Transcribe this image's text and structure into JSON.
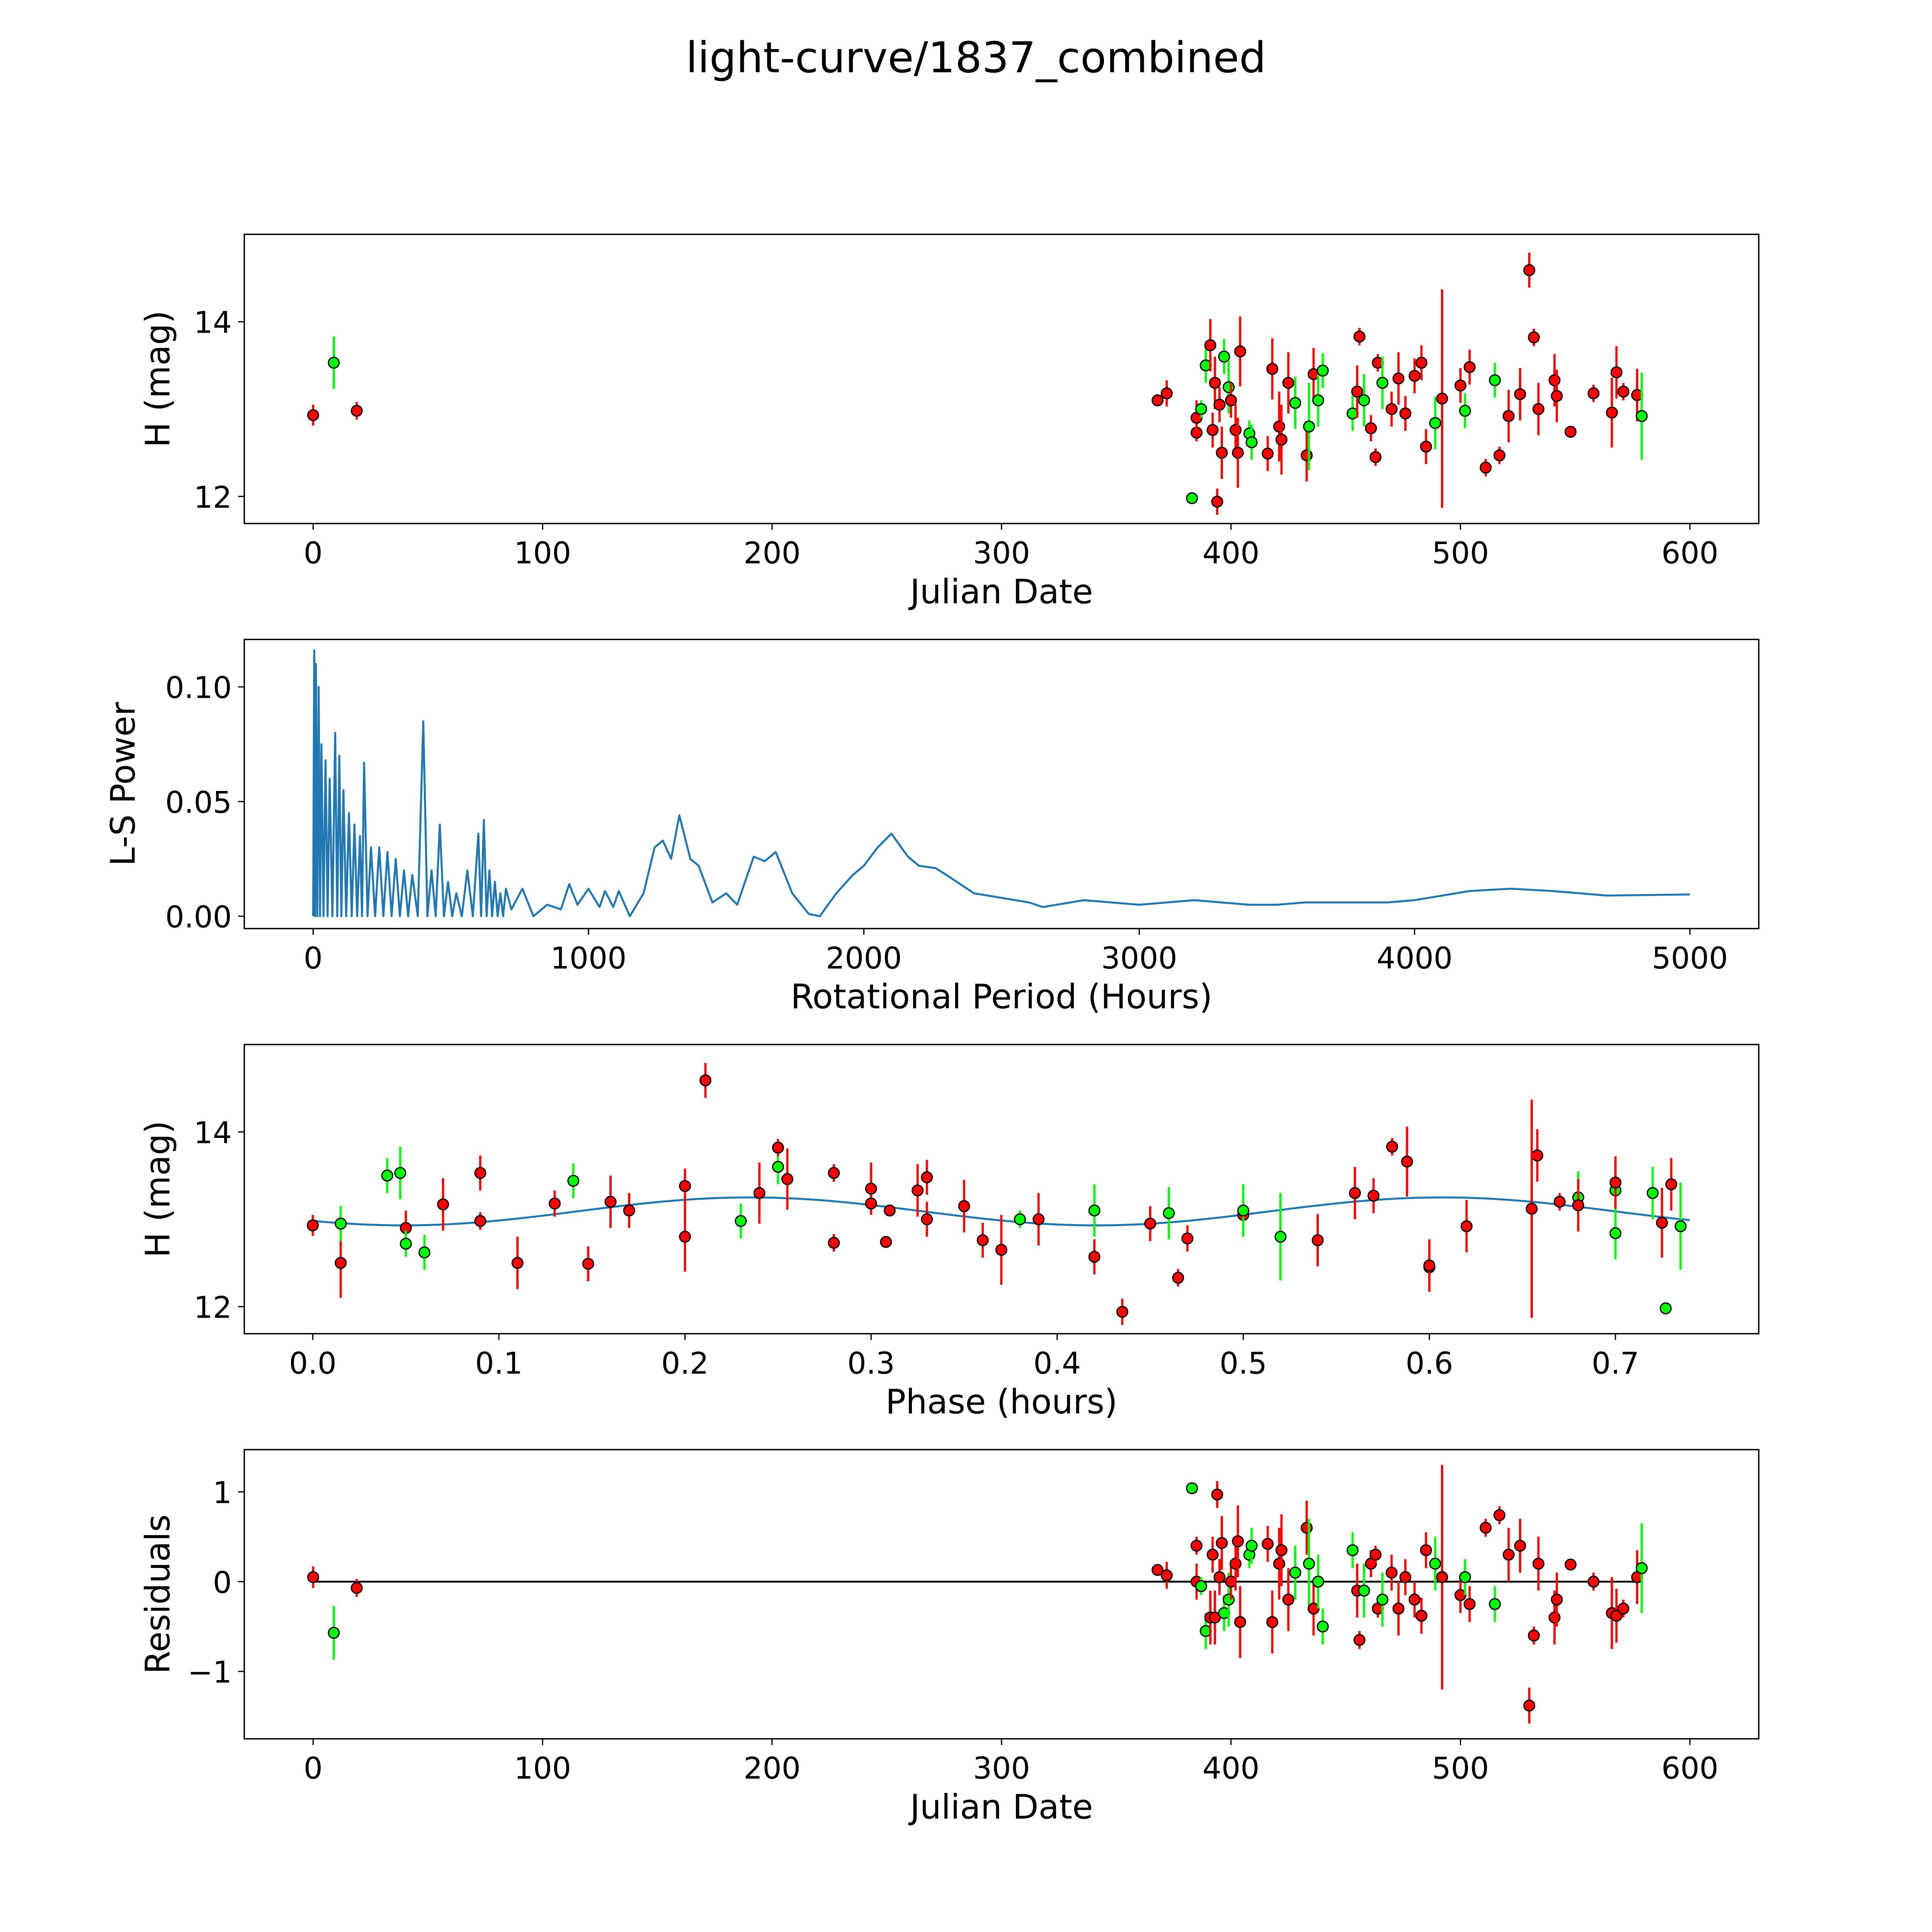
{
  "title": "light-curve/1837_combined",
  "colors": {
    "r": "#ff0000",
    "g": "#00ff00",
    "curve": "#1f77b4",
    "marker_edge": "#000000"
  },
  "chart_data": [
    {
      "type": "scatter",
      "id": "lightcurve",
      "xlabel": "Julian Date",
      "ylabel": "H (mag)",
      "xlim": [
        -30,
        630
      ],
      "ylim": [
        11.69,
        15.0
      ],
      "xticks": [
        "0",
        "100",
        "200",
        "300",
        "400",
        "500",
        "600"
      ],
      "yticks": [
        "12",
        "14"
      ]
    },
    {
      "type": "line",
      "id": "periodogram",
      "xlabel": "Rotational Period (Hours)",
      "ylabel": "L-S Power",
      "xlim": [
        -250,
        5250
      ],
      "ylim": [
        -0.0054,
        0.1207
      ],
      "xticks": [
        "0",
        "1000",
        "2000",
        "3000",
        "4000",
        "5000"
      ],
      "yticks": [
        "0.00",
        "0.05",
        "0.10"
      ],
      "spikes": [
        [
          4,
          0.116
        ],
        [
          10,
          0.11
        ],
        [
          20,
          0.1
        ],
        [
          30,
          0.075
        ],
        [
          45,
          0.068
        ],
        [
          60,
          0.06
        ],
        [
          80,
          0.08
        ],
        [
          95,
          0.07
        ],
        [
          110,
          0.055
        ],
        [
          130,
          0.045
        ],
        [
          150,
          0.04
        ],
        [
          170,
          0.035
        ],
        [
          185,
          0.067
        ],
        [
          210,
          0.03
        ],
        [
          240,
          0.03
        ],
        [
          270,
          0.028
        ],
        [
          300,
          0.025
        ],
        [
          330,
          0.02
        ],
        [
          360,
          0.018
        ],
        [
          400,
          0.085
        ],
        [
          430,
          0.02
        ],
        [
          460,
          0.04
        ],
        [
          490,
          0.015
        ],
        [
          520,
          0.01
        ],
        [
          560,
          0.02
        ],
        [
          600,
          0.036
        ],
        [
          620,
          0.042
        ],
        [
          640,
          0.02
        ],
        [
          660,
          0.015
        ],
        [
          680,
          0.01
        ]
      ],
      "smooth": [
        [
          700,
          0.012
        ],
        [
          720,
          0.003
        ],
        [
          760,
          0.012
        ],
        [
          800,
          0.0
        ],
        [
          850,
          0.005
        ],
        [
          900,
          0.003
        ],
        [
          930,
          0.014
        ],
        [
          960,
          0.005
        ],
        [
          1000,
          0.012
        ],
        [
          1040,
          0.004
        ],
        [
          1060,
          0.011
        ],
        [
          1090,
          0.004
        ],
        [
          1110,
          0.011
        ],
        [
          1150,
          0.0
        ],
        [
          1200,
          0.01
        ],
        [
          1240,
          0.03
        ],
        [
          1270,
          0.033
        ],
        [
          1300,
          0.025
        ],
        [
          1330,
          0.044
        ],
        [
          1370,
          0.025
        ],
        [
          1400,
          0.022
        ],
        [
          1450,
          0.006
        ],
        [
          1500,
          0.01
        ],
        [
          1540,
          0.005
        ],
        [
          1600,
          0.026
        ],
        [
          1640,
          0.024
        ],
        [
          1680,
          0.028
        ],
        [
          1740,
          0.01
        ],
        [
          1800,
          0.001
        ],
        [
          1840,
          0.0
        ],
        [
          1900,
          0.01
        ],
        [
          1960,
          0.018
        ],
        [
          2000,
          0.022
        ],
        [
          2050,
          0.03
        ],
        [
          2100,
          0.036
        ],
        [
          2160,
          0.026
        ],
        [
          2200,
          0.022
        ],
        [
          2260,
          0.021
        ],
        [
          2300,
          0.018
        ],
        [
          2400,
          0.01
        ],
        [
          2500,
          0.008
        ],
        [
          2600,
          0.006
        ],
        [
          2650,
          0.004
        ],
        [
          2700,
          0.005
        ],
        [
          2800,
          0.007
        ],
        [
          2900,
          0.006
        ],
        [
          3000,
          0.005
        ],
        [
          3100,
          0.006
        ],
        [
          3200,
          0.007
        ],
        [
          3300,
          0.006
        ],
        [
          3400,
          0.005
        ],
        [
          3500,
          0.005
        ],
        [
          3600,
          0.006
        ],
        [
          3700,
          0.006
        ],
        [
          3900,
          0.006
        ],
        [
          4000,
          0.007
        ],
        [
          4200,
          0.011
        ],
        [
          4350,
          0.012
        ],
        [
          4500,
          0.011
        ],
        [
          4700,
          0.009
        ],
        [
          5000,
          0.0095
        ]
      ]
    },
    {
      "type": "scatter",
      "id": "phased",
      "xlabel": "Phase (hours)",
      "ylabel": "H (mag)",
      "xlim": [
        -0.0368,
        0.777
      ],
      "ylim": [
        11.69,
        15.0
      ],
      "xticks": [
        "0.0",
        "0.1",
        "0.2",
        "0.3",
        "0.4",
        "0.5",
        "0.6",
        "0.7"
      ],
      "yticks": [
        "12",
        "14"
      ],
      "model": {
        "mean": 13.09,
        "amplitude": 0.16,
        "period": 0.372,
        "peak_phase": 0.235,
        "range": [
          0,
          0.74
        ]
      }
    },
    {
      "type": "scatter",
      "id": "residuals",
      "xlabel": "Julian Date",
      "ylabel": "Residuals",
      "xlim": [
        -30,
        630
      ],
      "ylim": [
        -1.75,
        1.47
      ],
      "xticks": [
        "0",
        "100",
        "200",
        "300",
        "400",
        "500",
        "600"
      ],
      "yticks": [
        "−1",
        "0",
        "1"
      ]
    }
  ],
  "points_columns": [
    "julian_date",
    "mag",
    "err",
    "band",
    "phase",
    "residual"
  ],
  "points": [
    [
      0,
      12.93,
      0.12,
      "r",
      0.0,
      0.05
    ],
    [
      9,
      13.53,
      0.3,
      "g",
      0.047,
      -0.57
    ],
    [
      19,
      12.98,
      0.1,
      "r",
      0.09,
      -0.07
    ],
    [
      368,
      13.1,
      0.05,
      "r",
      0.31,
      0.13
    ],
    [
      372,
      13.18,
      0.15,
      "r",
      0.13,
      0.07
    ],
    [
      383,
      11.98,
      0.03,
      "g",
      0.727,
      1.04
    ],
    [
      385,
      12.73,
      0.1,
      "r",
      0.28,
      0.4
    ],
    [
      385,
      12.9,
      0.2,
      "r",
      0.05,
      0.0
    ],
    [
      387,
      13.0,
      0.1,
      "g",
      0.38,
      -0.05
    ],
    [
      389,
      13.5,
      0.2,
      "g",
      0.04,
      -0.55
    ],
    [
      391,
      13.73,
      0.3,
      "r",
      0.658,
      -0.4
    ],
    [
      392,
      12.76,
      0.2,
      "r",
      0.36,
      0.3
    ],
    [
      393,
      13.3,
      0.3,
      "r",
      0.56,
      -0.4
    ],
    [
      394,
      11.94,
      0.15,
      "r",
      0.435,
      0.97
    ],
    [
      395,
      13.05,
      0.2,
      "r",
      0.5,
      0.05
    ],
    [
      396,
      12.5,
      0.3,
      "r",
      0.11,
      0.43
    ],
    [
      397,
      13.6,
      0.2,
      "g",
      0.25,
      -0.35
    ],
    [
      399,
      13.25,
      0.3,
      "g",
      0.68,
      -0.2
    ],
    [
      400,
      13.1,
      0.2,
      "r",
      0.17,
      0.0
    ],
    [
      402,
      12.76,
      0.3,
      "r",
      0.54,
      0.2
    ],
    [
      403,
      12.5,
      0.4,
      "r",
      0.015,
      0.45
    ],
    [
      404,
      13.66,
      0.4,
      "r",
      0.588,
      -0.45
    ],
    [
      408,
      12.72,
      0.15,
      "g",
      0.05,
      0.3
    ],
    [
      409,
      12.62,
      0.2,
      "g",
      0.06,
      0.4
    ],
    [
      416,
      12.49,
      0.2,
      "r",
      0.148,
      0.42
    ],
    [
      418,
      13.46,
      0.35,
      "r",
      0.255,
      -0.45
    ],
    [
      421,
      12.8,
      0.4,
      "r",
      0.2,
      0.2
    ],
    [
      422,
      12.65,
      0.4,
      "r",
      0.37,
      0.35
    ],
    [
      425,
      13.3,
      0.35,
      "r",
      0.24,
      -0.2
    ],
    [
      428,
      13.07,
      0.3,
      "g",
      0.46,
      0.1
    ],
    [
      433,
      12.47,
      0.3,
      "r",
      0.6,
      0.6
    ],
    [
      434,
      12.8,
      0.5,
      "g",
      0.52,
      0.2
    ],
    [
      436,
      13.4,
      0.3,
      "r",
      0.73,
      -0.3
    ],
    [
      438,
      13.1,
      0.3,
      "g",
      0.42,
      0.0
    ],
    [
      440,
      13.44,
      0.2,
      "g",
      0.14,
      -0.5
    ],
    [
      453,
      12.95,
      0.2,
      "g",
      0.015,
      0.35
    ],
    [
      455,
      13.2,
      0.3,
      "r",
      0.16,
      -0.1
    ],
    [
      456,
      13.83,
      0.1,
      "r",
      0.58,
      -0.65
    ],
    [
      458,
      13.1,
      0.3,
      "g",
      0.5,
      -0.1
    ],
    [
      461,
      12.78,
      0.15,
      "r",
      0.47,
      0.2
    ],
    [
      463,
      12.45,
      0.1,
      "r",
      0.6,
      0.3
    ],
    [
      464,
      13.53,
      0.1,
      "r",
      0.28,
      -0.3
    ],
    [
      466,
      13.3,
      0.3,
      "g",
      0.72,
      -0.2
    ],
    [
      470,
      13.0,
      0.2,
      "r",
      0.33,
      0.1
    ],
    [
      473,
      13.35,
      0.3,
      "r",
      0.3,
      -0.3
    ],
    [
      476,
      12.95,
      0.2,
      "r",
      0.45,
      0.05
    ],
    [
      480,
      13.38,
      0.2,
      "r",
      0.2,
      -0.2
    ],
    [
      483,
      13.53,
      0.2,
      "r",
      0.09,
      -0.38
    ],
    [
      485,
      12.57,
      0.2,
      "r",
      0.42,
      0.35
    ],
    [
      489,
      12.84,
      0.3,
      "g",
      0.7,
      0.2
    ],
    [
      492,
      13.12,
      1.25,
      "r",
      0.655,
      0.05
    ],
    [
      500,
      13.27,
      0.2,
      "r",
      0.57,
      -0.15
    ],
    [
      502,
      12.98,
      0.2,
      "g",
      0.23,
      0.05
    ],
    [
      504,
      13.48,
      0.2,
      "r",
      0.33,
      -0.25
    ],
    [
      511,
      12.33,
      0.1,
      "r",
      0.465,
      0.6
    ],
    [
      515,
      13.33,
      0.2,
      "g",
      0.7,
      -0.25
    ],
    [
      517,
      12.47,
      0.1,
      "r",
      0.6,
      0.74
    ],
    [
      521,
      12.92,
      0.3,
      "r",
      0.62,
      0.3
    ],
    [
      526,
      13.17,
      0.3,
      "r",
      0.07,
      0.4
    ],
    [
      530,
      14.59,
      0.2,
      "r",
      0.211,
      -1.38
    ],
    [
      532,
      13.82,
      0.1,
      "r",
      0.25,
      -0.6
    ],
    [
      534,
      13.0,
      0.3,
      "r",
      0.39,
      0.2
    ],
    [
      541,
      13.33,
      0.3,
      "r",
      0.325,
      -0.4
    ],
    [
      542,
      13.15,
      0.3,
      "r",
      0.35,
      -0.2
    ],
    [
      548,
      12.74,
      0.05,
      "r",
      0.308,
      0.19
    ],
    [
      558,
      13.18,
      0.1,
      "r",
      0.3,
      0.0
    ],
    [
      566,
      12.96,
      0.4,
      "r",
      0.725,
      -0.35
    ],
    [
      568,
      13.42,
      0.3,
      "r",
      0.7,
      -0.38
    ],
    [
      571,
      13.2,
      0.1,
      "r",
      0.67,
      -0.3
    ],
    [
      577,
      13.16,
      0.3,
      "r",
      0.68,
      0.05
    ],
    [
      579,
      12.92,
      0.5,
      "g",
      0.735,
      0.15
    ]
  ]
}
